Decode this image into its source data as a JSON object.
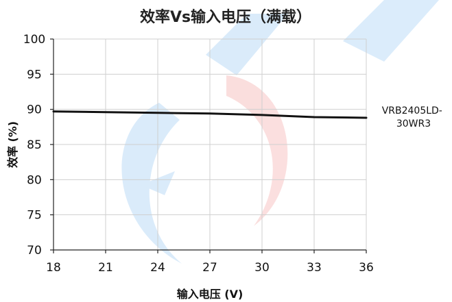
{
  "chart_data": {
    "type": "line",
    "title": "效率Vs输入电压（满载）",
    "xlabel": "输入电压 (V)",
    "ylabel": "效率 (%)",
    "xlim": [
      18,
      36
    ],
    "ylim": [
      70,
      100
    ],
    "x_ticks": [
      "18",
      "21",
      "24",
      "27",
      "30",
      "33",
      "36"
    ],
    "y_ticks": [
      "70",
      "75",
      "80",
      "85",
      "90",
      "95",
      "100"
    ],
    "grid": true,
    "series": [
      {
        "name": "VRB2405LD-30WR3",
        "label_lines": [
          "VRB2405LD-",
          "30WR3"
        ],
        "color": "#111111",
        "x": [
          18,
          21,
          24,
          27,
          30,
          33,
          36
        ],
        "values": [
          89.7,
          89.6,
          89.5,
          89.4,
          89.2,
          88.9,
          88.8
        ]
      }
    ]
  }
}
